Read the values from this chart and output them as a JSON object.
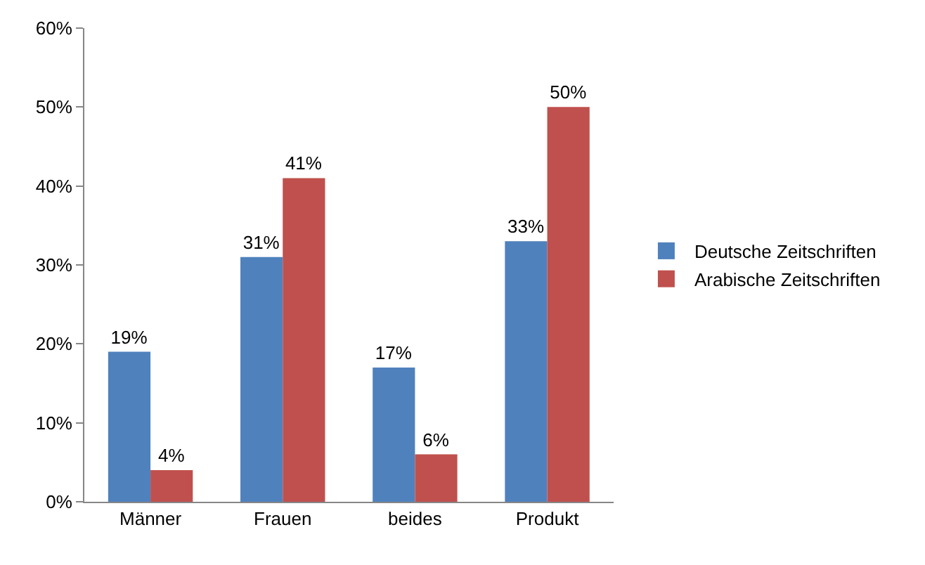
{
  "chart_data": {
    "type": "bar",
    "categories": [
      "Männer",
      "Frauen",
      "beides",
      "Produkt"
    ],
    "series": [
      {
        "name": "Deutsche Zeitschriften",
        "color": "#4f81bd",
        "values": [
          19,
          31,
          17,
          33
        ],
        "value_labels": [
          "19%",
          "31%",
          "17%",
          "33%"
        ]
      },
      {
        "name": "Arabische Zeitschriften",
        "color": "#c0504d",
        "values": [
          4,
          41,
          6,
          50
        ],
        "value_labels": [
          "4%",
          "41%",
          "6%",
          "50%"
        ]
      }
    ],
    "ylim": [
      0,
      60
    ],
    "yticks": [
      {
        "value": 0,
        "label": "0%"
      },
      {
        "value": 10,
        "label": "10%"
      },
      {
        "value": 20,
        "label": "20%"
      },
      {
        "value": 30,
        "label": "30%"
      },
      {
        "value": 40,
        "label": "40%"
      },
      {
        "value": 50,
        "label": "50%"
      },
      {
        "value": 60,
        "label": "60%"
      }
    ],
    "grid": false,
    "legend": "right"
  }
}
